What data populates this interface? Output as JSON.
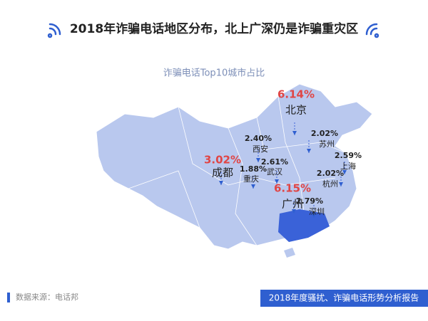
{
  "header": {
    "title": "2018年诈骗电话地区分布，北上广深仍是诈骗重灾区"
  },
  "map": {
    "subtitle": "诈骗电话Top10城市占比",
    "cities": [
      {
        "name": "北京",
        "value": 6.14,
        "value_label": "6.14%"
      },
      {
        "name": "西安",
        "value": 2.4,
        "value_label": "2.40%"
      },
      {
        "name": "成都",
        "value": 3.02,
        "value_label": "3.02%"
      },
      {
        "name": "重庆",
        "value": 1.88,
        "value_label": "1.88%"
      },
      {
        "name": "武汉",
        "value": 2.61,
        "value_label": "2.61%"
      },
      {
        "name": "广州",
        "value": 6.15,
        "value_label": "6.15%"
      },
      {
        "name": "深圳",
        "value": 2.79,
        "value_label": "2.79%"
      },
      {
        "name": "苏州",
        "value": 2.02,
        "value_label": "2.02%"
      },
      {
        "name": "上海",
        "value": 2.59,
        "value_label": "2.59%"
      },
      {
        "name": "杭州",
        "value": 2.02,
        "value_label": "2.02%"
      }
    ]
  },
  "footer": {
    "source": "数据来源：电话邦",
    "report": "2018年度骚扰、诈骗电话形势分析报告"
  }
}
